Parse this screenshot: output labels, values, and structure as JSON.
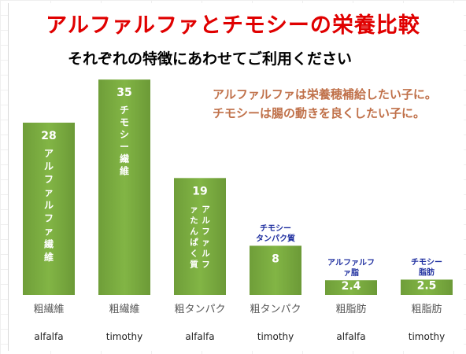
{
  "title": "アルファルファとチモシーの栄養比較",
  "subtitle": "それぞれの特徴にあわせてご利用ください",
  "note_lines": [
    "アルファルファは栄養穂補給したい子に。",
    "チモシーは腸の動きを良くしたい子に。"
  ],
  "chart_data": {
    "type": "bar",
    "categories": [
      "粗繊維",
      "粗繊維",
      "粗タンパク",
      "粗タンパク",
      "粗脂肪",
      "粗脂肪"
    ],
    "sources": [
      "alfalfa",
      "timothy",
      "alfalfa",
      "timothy",
      "alfalfa",
      "timothy"
    ],
    "values": [
      28,
      35,
      19,
      8,
      2.4,
      2.5
    ],
    "value_labels": [
      "28",
      "35",
      "19",
      "8",
      "2.4",
      "2.5"
    ],
    "bar_labels": [
      "アルファルファ繊維",
      "チモシー繊維",
      "アルファルファたんぱく質",
      "チモシータンパク質",
      "アルファルファ脂肪",
      "チモシー脂肪"
    ],
    "ylim": [
      0,
      40
    ],
    "grid": false,
    "bar_color": "#77a83f"
  }
}
